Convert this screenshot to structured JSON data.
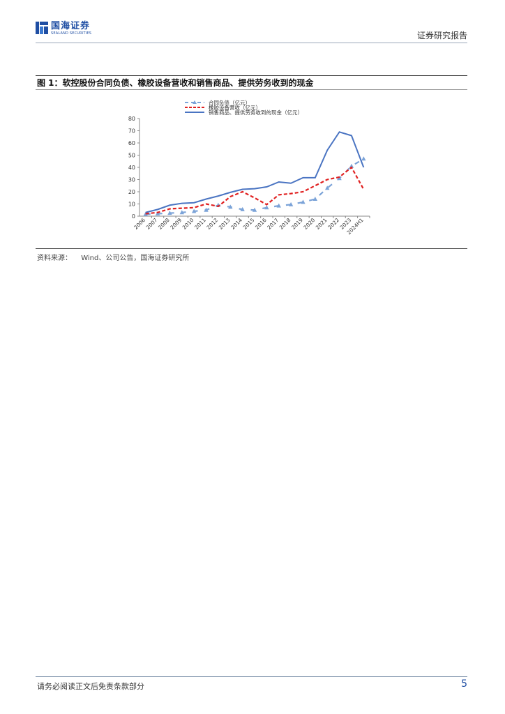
{
  "header": {
    "logo_cn": "国海证券",
    "logo_en": "SEALAND SECURITIES",
    "report_type": "证券研究报告"
  },
  "figure": {
    "title": "图 1：软控股份合同负债、橡胶设备营收和销售商品、提供劳务收到的现金",
    "source_label": "资料来源：",
    "source_text": "Wind、公司公告，国海证券研究所"
  },
  "footer": {
    "disclaimer": "请务必阅读正文后免责条款部分",
    "page_number": "5"
  },
  "colors": {
    "brand_blue": "#1f4ea3",
    "series_contract": "#7ba3d8",
    "series_rubber": "#e02020",
    "series_cash": "#4a74c2"
  },
  "chart_data": {
    "type": "line",
    "x": [
      "2006",
      "2007",
      "2008",
      "2009",
      "2010",
      "2011",
      "2012",
      "2013",
      "2014",
      "2015",
      "2016",
      "2017",
      "2018",
      "2019",
      "2020",
      "2021",
      "2022",
      "2023",
      "2024H1"
    ],
    "yticks": [
      "0",
      "10",
      "20",
      "30",
      "40",
      "50",
      "60",
      "70",
      "80"
    ],
    "ylim": [
      0,
      80
    ],
    "grid": false,
    "legend_position": "top",
    "series": [
      {
        "name": "合同负债（亿元）",
        "style": "dashed-triangle",
        "values": [
          1.5,
          2,
          2.5,
          3,
          4,
          5,
          9,
          7.5,
          5.5,
          5,
          7,
          8.5,
          9.5,
          11.5,
          14,
          23,
          31,
          41,
          47
        ]
      },
      {
        "name": "橡胶设备营收（亿元）",
        "style": "dashed",
        "values": [
          2,
          3,
          6,
          6.5,
          7,
          10,
          8,
          16,
          20,
          15,
          9.5,
          17.5,
          18.5,
          20,
          25,
          30,
          32,
          40,
          22
        ]
      },
      {
        "name": "销售商品、提供劳务收到的现金（亿元）",
        "style": "solid",
        "values": [
          3,
          5.5,
          9,
          10.5,
          11,
          14,
          16.5,
          19.5,
          22,
          22.5,
          24,
          28,
          27,
          31.5,
          31.5,
          54,
          69,
          66,
          40
        ]
      }
    ]
  }
}
